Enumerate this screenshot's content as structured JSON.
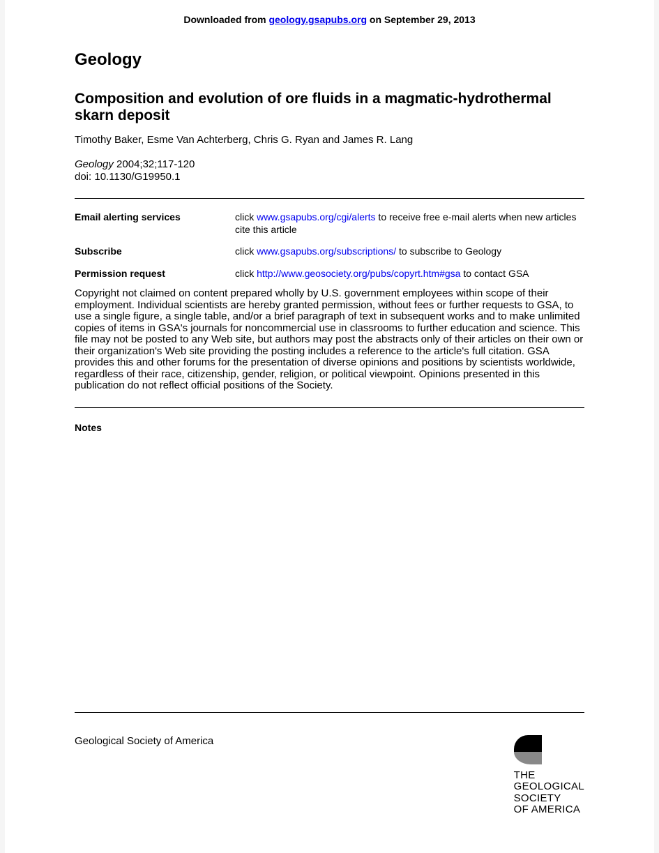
{
  "banner": {
    "prefix": "Downloaded from ",
    "link_text": "geology.gsapubs.org",
    "suffix": " on September 29, 2013"
  },
  "journal": "Geology",
  "title": "Composition and evolution of ore fluids in a magmatic-hydrothermal skarn deposit",
  "authors": "Timothy Baker, Esme Van Achterberg, Chris G. Ryan and James R. Lang",
  "citation": {
    "journal": "Geology",
    "rest": " 2004;32;117-120"
  },
  "doi": "doi: 10.1130/G19950.1",
  "services": [
    {
      "label": "Email alerting services",
      "pre": "click ",
      "link": "www.gsapubs.org/cgi/alerts",
      "post": " to receive free e-mail alerts when new articles cite this article"
    },
    {
      "label": "Subscribe",
      "pre": "click ",
      "link": "www.gsapubs.org/subscriptions/",
      "post": " to subscribe to Geology"
    },
    {
      "label": "Permission request",
      "pre": "click ",
      "link": "http://www.geosociety.org/pubs/copyrt.htm#gsa",
      "post": " to contact GSA"
    }
  ],
  "copyright": "Copyright not claimed on content prepared wholly by U.S. government employees within scope of their employment. Individual scientists are hereby granted permission, without fees or further requests to GSA, to use a single figure, a single table, and/or a brief paragraph of text in subsequent works and to make unlimited copies of items in GSA's journals for noncommercial use in classrooms to further education and science. This file may not be posted to any Web site, but authors may post the abstracts only of their articles on their own or their organization's Web site providing the posting includes a reference to the article's full citation. GSA provides this and other forums for the presentation of diverse opinions and positions by scientists worldwide, regardless of their race, citizenship, gender, religion, or political viewpoint. Opinions presented in this publication do not reflect official positions of the Society.",
  "notes_label": "Notes",
  "footer": {
    "society": "Geological Society of America",
    "logo_lines": [
      "THE",
      "GEOLOGICAL",
      "SOCIETY",
      "OF AMERICA"
    ]
  },
  "colors": {
    "background": "#f5f5f5",
    "page": "#ffffff",
    "text": "#000000",
    "link": "#0000ee",
    "logo_dark": "#000000",
    "logo_grey": "#888888"
  }
}
